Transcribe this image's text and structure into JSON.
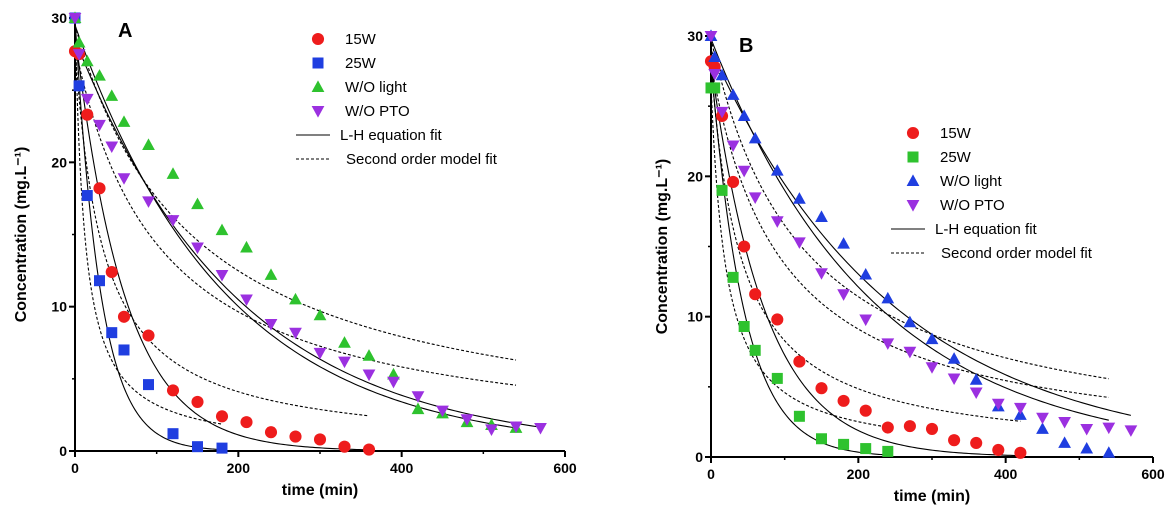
{
  "colors": {
    "15W": "#ee1c1c",
    "25W": "#1f3ee0",
    "25W_B": "#2ec22e",
    "W/O light": "#2ec22e",
    "W/O light_B": "#1f3ee0",
    "W/O PTO": "#9b30e0",
    "axis": "#000000"
  },
  "chart_data": [
    {
      "type": "scatter",
      "panel_label": "A",
      "xlabel": "time (min)",
      "ylabel": "Concentration (mg.L⁻¹)",
      "xlim": [
        0,
        600
      ],
      "ylim": [
        0,
        30
      ],
      "x_ticks": [
        0,
        200,
        400,
        600
      ],
      "y_ticks": [
        0,
        10,
        20,
        30
      ],
      "legend_position": "top-right",
      "series": [
        {
          "name": "15W",
          "marker": "circle",
          "color_key": "15W",
          "x": [
            0,
            5,
            15,
            30,
            45,
            60,
            90,
            120,
            150,
            180,
            210,
            240,
            270,
            300,
            330,
            360
          ],
          "y": [
            27.7,
            27.5,
            23.3,
            18.2,
            12.4,
            9.3,
            8.0,
            4.2,
            3.4,
            2.4,
            2.0,
            1.3,
            1.0,
            0.8,
            0.3,
            0.1
          ]
        },
        {
          "name": "25W",
          "marker": "square",
          "color_key": "25W",
          "x": [
            0,
            5,
            15,
            30,
            45,
            60,
            90,
            120,
            150,
            180
          ],
          "y": [
            30.0,
            25.3,
            17.7,
            11.8,
            8.2,
            7.0,
            4.6,
            1.2,
            0.3,
            0.2
          ]
        },
        {
          "name": "W/O light",
          "marker": "triangle-up",
          "color_key": "W/O light",
          "x": [
            0,
            5,
            15,
            30,
            45,
            60,
            90,
            120,
            150,
            180,
            210,
            240,
            270,
            300,
            330,
            360,
            390,
            420,
            450,
            480,
            510,
            540
          ],
          "y": [
            30.0,
            28.3,
            27.0,
            26.0,
            24.6,
            22.8,
            21.2,
            19.2,
            17.1,
            15.3,
            14.1,
            12.2,
            10.5,
            9.4,
            7.5,
            6.6,
            5.3,
            2.9,
            2.6,
            2.0,
            1.8,
            1.6
          ]
        },
        {
          "name": "W/O PTO",
          "marker": "triangle-down",
          "color_key": "W/O PTO",
          "x": [
            0,
            5,
            15,
            30,
            45,
            60,
            90,
            120,
            150,
            180,
            210,
            240,
            270,
            300,
            330,
            360,
            390,
            420,
            450,
            480,
            510,
            540,
            570
          ],
          "y": [
            30.0,
            27.5,
            24.4,
            22.6,
            21.1,
            18.9,
            17.3,
            16.0,
            14.1,
            12.2,
            10.5,
            8.8,
            8.2,
            6.8,
            6.2,
            5.3,
            4.8,
            3.8,
            2.8,
            2.2,
            1.5,
            1.7,
            1.6
          ]
        }
      ],
      "fits": [
        {
          "style": "solid",
          "for": "15W",
          "x_max": 360,
          "model": "exp",
          "c0": 29.0,
          "k": 0.0163
        },
        {
          "style": "solid",
          "for": "25W",
          "x_max": 180,
          "model": "exp",
          "c0": 30.0,
          "k": 0.032
        },
        {
          "style": "solid",
          "for": "W/O light",
          "x_max": 540,
          "model": "exp",
          "c0": 29.5,
          "k": 0.0054
        },
        {
          "style": "solid",
          "for": "W/O PTO",
          "x_max": 570,
          "model": "exp",
          "c0": 28.5,
          "k": 0.005
        },
        {
          "style": "dashed",
          "for": "15W",
          "x_max": 360,
          "model": "second",
          "c0": 28.0,
          "k": 0.00104
        },
        {
          "style": "dashed",
          "for": "25W",
          "x_max": 180,
          "model": "second",
          "c0": 30.0,
          "k": 0.0028
        },
        {
          "style": "dashed",
          "for": "W/O light",
          "x_max": 540,
          "model": "second",
          "c0": 29.5,
          "k": 0.000231
        },
        {
          "style": "dashed",
          "for": "W/O PTO",
          "x_max": 540,
          "model": "second",
          "c0": 28.0,
          "k": 0.00034
        }
      ],
      "legend": [
        {
          "label": "15W",
          "marker": "circle",
          "color_key": "15W"
        },
        {
          "label": "25W",
          "marker": "square",
          "color_key": "25W"
        },
        {
          "label": "W/O light",
          "marker": "triangle-up",
          "color_key": "W/O light"
        },
        {
          "label": "W/O PTO",
          "marker": "triangle-down",
          "color_key": "W/O PTO"
        },
        {
          "label": "L-H equation fit",
          "marker": "line-solid"
        },
        {
          "label": "Second order model fit",
          "marker": "line-dashed"
        }
      ]
    },
    {
      "type": "scatter",
      "panel_label": "B",
      "xlabel": "time (min)",
      "ylabel": "Concentration (mg.L⁻¹)",
      "xlim": [
        0,
        600
      ],
      "ylim": [
        0,
        30
      ],
      "x_ticks": [
        0,
        200,
        400,
        600
      ],
      "y_ticks": [
        0,
        10,
        20,
        30
      ],
      "legend_position": "top-right",
      "series": [
        {
          "name": "15W",
          "marker": "circle",
          "color_key": "15W",
          "x": [
            0,
            5,
            15,
            30,
            45,
            60,
            90,
            120,
            150,
            180,
            210,
            240,
            270,
            300,
            330,
            360,
            390,
            420
          ],
          "y": [
            28.2,
            27.8,
            24.3,
            19.6,
            15.0,
            11.6,
            9.8,
            6.8,
            4.9,
            4.0,
            3.3,
            2.1,
            2.2,
            2.0,
            1.2,
            1.0,
            0.5,
            0.3
          ]
        },
        {
          "name": "25W",
          "marker": "square",
          "color_key": "25W_B",
          "x": [
            0,
            5,
            15,
            30,
            45,
            60,
            90,
            120,
            150,
            180,
            210,
            240
          ],
          "y": [
            26.3,
            26.3,
            19.0,
            12.8,
            9.3,
            7.6,
            5.6,
            2.9,
            1.3,
            0.9,
            0.6,
            0.4
          ]
        },
        {
          "name": "W/O light",
          "marker": "triangle-up",
          "color_key": "W/O light_B",
          "x": [
            0,
            5,
            15,
            30,
            45,
            60,
            90,
            120,
            150,
            180,
            210,
            240,
            270,
            300,
            330,
            360,
            390,
            420,
            450,
            480,
            510,
            540
          ],
          "y": [
            30.0,
            28.5,
            27.2,
            25.8,
            24.3,
            22.7,
            20.4,
            18.4,
            17.1,
            15.2,
            13.0,
            11.3,
            9.6,
            8.4,
            7.0,
            5.5,
            3.6,
            3.0,
            2.0,
            1.0,
            0.6,
            0.3
          ]
        },
        {
          "name": "W/O PTO",
          "marker": "triangle-down",
          "color_key": "W/O PTO",
          "x": [
            0,
            5,
            15,
            30,
            45,
            60,
            90,
            120,
            150,
            180,
            210,
            240,
            270,
            300,
            330,
            360,
            390,
            420,
            450,
            480,
            510,
            540,
            570
          ],
          "y": [
            30.0,
            27.3,
            24.6,
            22.2,
            20.4,
            18.5,
            16.8,
            15.3,
            13.1,
            11.6,
            9.8,
            8.1,
            7.5,
            6.4,
            5.6,
            4.6,
            3.8,
            3.5,
            2.8,
            2.5,
            2.0,
            2.1,
            1.9
          ]
        }
      ],
      "fits": [
        {
          "style": "solid",
          "for": "15W",
          "x_max": 420,
          "model": "exp",
          "c0": 28.0,
          "k": 0.0135
        },
        {
          "style": "solid",
          "for": "25W",
          "x_max": 240,
          "model": "exp",
          "c0": 28.0,
          "k": 0.022
        },
        {
          "style": "solid",
          "for": "W/O light",
          "x_max": 540,
          "model": "exp",
          "c0": 29.8,
          "k": 0.0045
        },
        {
          "style": "solid",
          "for": "W/O PTO",
          "x_max": 570,
          "model": "exp",
          "c0": 29.0,
          "k": 0.004
        },
        {
          "style": "dashed",
          "for": "15W",
          "x_max": 420,
          "model": "second",
          "c0": 28.0,
          "k": 0.00085
        },
        {
          "style": "dashed",
          "for": "25W",
          "x_max": 240,
          "model": "second",
          "c0": 26.5,
          "k": 0.0018
        },
        {
          "style": "dashed",
          "for": "W/O light",
          "x_max": 540,
          "model": "second",
          "c0": 29.8,
          "k": 0.00027
        },
        {
          "style": "dashed",
          "for": "W/O PTO",
          "x_max": 540,
          "model": "second",
          "c0": 28.0,
          "k": 0.00037
        }
      ],
      "legend": [
        {
          "label": "15W",
          "marker": "circle",
          "color_key": "15W"
        },
        {
          "label": "25W",
          "marker": "square",
          "color_key": "25W_B"
        },
        {
          "label": "W/O light",
          "marker": "triangle-up",
          "color_key": "W/O light_B"
        },
        {
          "label": "W/O PTO",
          "marker": "triangle-down",
          "color_key": "W/O PTO"
        },
        {
          "label": "L-H equation fit",
          "marker": "line-solid"
        },
        {
          "label": "Second order model fit",
          "marker": "line-dashed"
        }
      ]
    }
  ]
}
